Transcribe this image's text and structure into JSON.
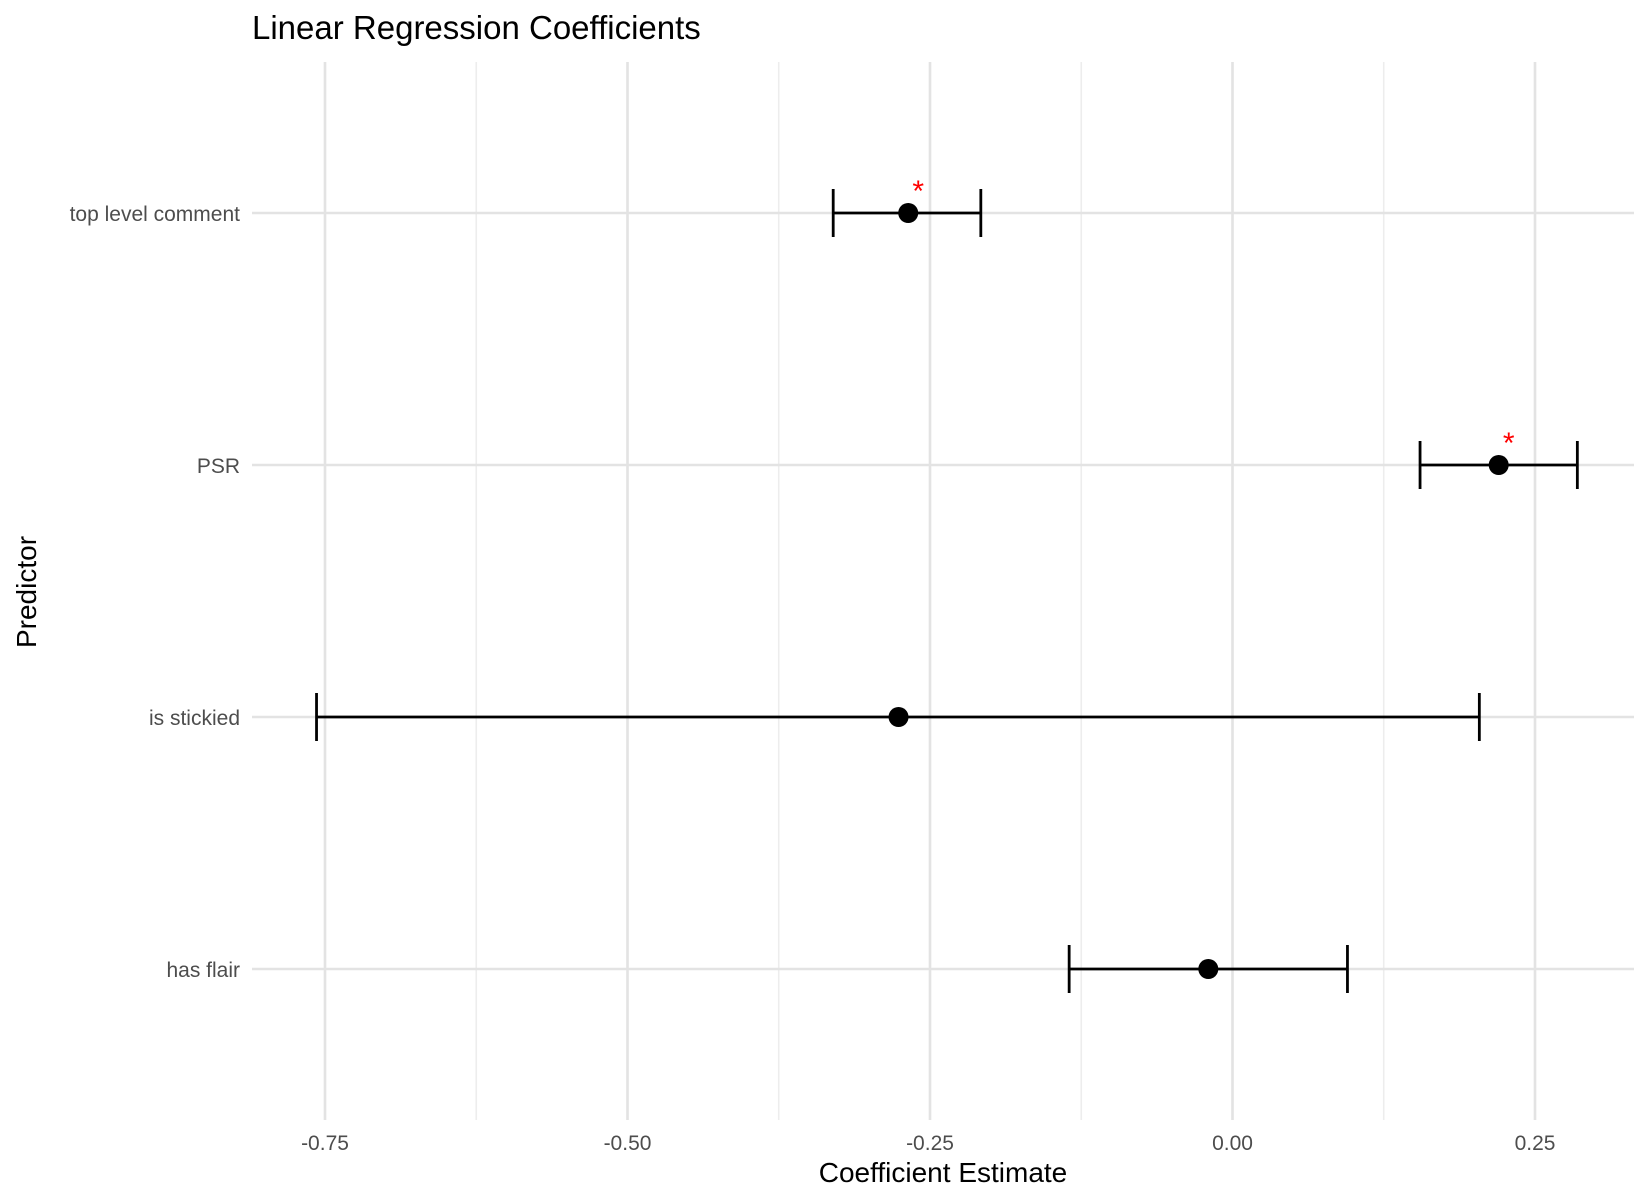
{
  "chart_data": {
    "type": "scatter",
    "variant": "coefficient-plot",
    "title": "Linear Regression Coefficients",
    "xlabel": "Coefficient Estimate",
    "ylabel": "Predictor",
    "xlim": [
      -0.87,
      0.335
    ],
    "xticks": [
      -0.75,
      -0.5,
      -0.25,
      0.0,
      0.25
    ],
    "xtick_labels": [
      "-0.75",
      "-0.50",
      "-0.25",
      "0.00",
      "0.25"
    ],
    "categories": [
      "has flair",
      "is stickied",
      "PSR",
      "top level comment"
    ],
    "estimates": [
      {
        "predictor": "top level comment",
        "estimate": -0.268,
        "ci_low": -0.33,
        "ci_high": -0.208,
        "significance": "*"
      },
      {
        "predictor": "PSR",
        "estimate": 0.22,
        "ci_low": 0.155,
        "ci_high": 0.285,
        "significance": "*"
      },
      {
        "predictor": "is stickied",
        "estimate": -0.276,
        "ci_low": -0.757,
        "ci_high": 0.204,
        "significance": ""
      },
      {
        "predictor": "has flair",
        "estimate": -0.02,
        "ci_low": -0.135,
        "ci_high": 0.095,
        "significance": ""
      }
    ],
    "grid": true,
    "colors": {
      "points": "#000000",
      "errorbars": "#000000",
      "significance": "#ff0000",
      "grid": "#e3e3e3",
      "background": "#ffffff"
    }
  }
}
